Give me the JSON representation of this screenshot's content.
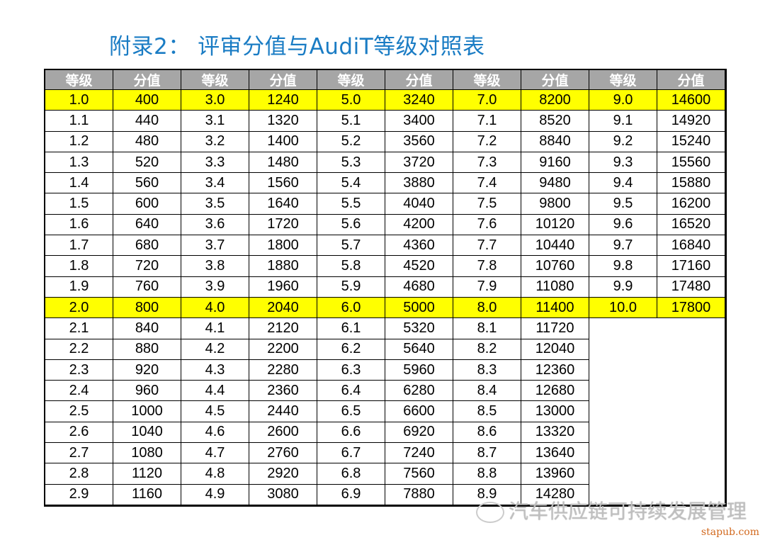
{
  "title": "附录2： 评审分值与AudiT等级对照表",
  "headers": [
    "等级",
    "分值",
    "等级",
    "分值",
    "等级",
    "分值",
    "等级",
    "分值",
    "等级",
    "分值"
  ],
  "highlight_color": "#ffff00",
  "highlight_rows": [
    0,
    10
  ],
  "rows": [
    [
      "1.0",
      "400",
      "3.0",
      "1240",
      "5.0",
      "3240",
      "7.0",
      "8200",
      "9.0",
      "14600"
    ],
    [
      "1.1",
      "440",
      "3.1",
      "1320",
      "5.1",
      "3400",
      "7.1",
      "8520",
      "9.1",
      "14920"
    ],
    [
      "1.2",
      "480",
      "3.2",
      "1400",
      "5.2",
      "3560",
      "7.2",
      "8840",
      "9.2",
      "15240"
    ],
    [
      "1.3",
      "520",
      "3.3",
      "1480",
      "5.3",
      "3720",
      "7.3",
      "9160",
      "9.3",
      "15560"
    ],
    [
      "1.4",
      "560",
      "3.4",
      "1560",
      "5.4",
      "3880",
      "7.4",
      "9480",
      "9.4",
      "15880"
    ],
    [
      "1.5",
      "600",
      "3.5",
      "1640",
      "5.5",
      "4040",
      "7.5",
      "9800",
      "9.5",
      "16200"
    ],
    [
      "1.6",
      "640",
      "3.6",
      "1720",
      "5.6",
      "4200",
      "7.6",
      "10120",
      "9.6",
      "16520"
    ],
    [
      "1.7",
      "680",
      "3.7",
      "1800",
      "5.7",
      "4360",
      "7.7",
      "10440",
      "9.7",
      "16840"
    ],
    [
      "1.8",
      "720",
      "3.8",
      "1880",
      "5.8",
      "4520",
      "7.8",
      "10760",
      "9.8",
      "17160"
    ],
    [
      "1.9",
      "760",
      "3.9",
      "1960",
      "5.9",
      "4680",
      "7.9",
      "11080",
      "9.9",
      "17480"
    ],
    [
      "2.0",
      "800",
      "4.0",
      "2040",
      "6.0",
      "5000",
      "8.0",
      "11400",
      "10.0",
      "17800"
    ],
    [
      "2.1",
      "840",
      "4.1",
      "2120",
      "6.1",
      "5320",
      "8.1",
      "11720"
    ],
    [
      "2.2",
      "880",
      "4.2",
      "2200",
      "6.2",
      "5640",
      "8.2",
      "12040"
    ],
    [
      "2.3",
      "920",
      "4.3",
      "2280",
      "6.3",
      "5960",
      "8.3",
      "12360"
    ],
    [
      "2.4",
      "960",
      "4.4",
      "2360",
      "6.4",
      "6280",
      "8.4",
      "12680"
    ],
    [
      "2.5",
      "1000",
      "4.5",
      "2440",
      "6.5",
      "6600",
      "8.5",
      "13000"
    ],
    [
      "2.6",
      "1040",
      "4.6",
      "2600",
      "6.6",
      "6920",
      "8.6",
      "13320"
    ],
    [
      "2.7",
      "1080",
      "4.7",
      "2760",
      "6.7",
      "7240",
      "8.7",
      "13640"
    ],
    [
      "2.8",
      "1120",
      "4.8",
      "2920",
      "6.8",
      "7560",
      "8.8",
      "13960"
    ],
    [
      "2.9",
      "1160",
      "4.9",
      "3080",
      "6.9",
      "7880",
      "8.9",
      "14280"
    ]
  ],
  "watermark": "汽车供应链可持续发展管理",
  "site": "stapub.com"
}
